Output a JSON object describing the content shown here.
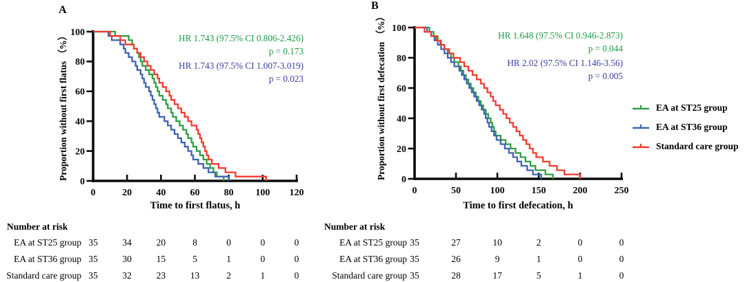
{
  "figure": {
    "background": "#ffffff",
    "colors": {
      "green_curve": "#2f9e44",
      "blue_curve": "#3e63b3",
      "red_curve": "#f23b2e",
      "green_text": "#1e9a47",
      "blue_text": "#3b3fa0",
      "axis": "#0a0a0a"
    }
  },
  "legend": {
    "items": [
      {
        "label": "EA at ST25 group",
        "color": "#2f9e44"
      },
      {
        "label": "EA at ST36 group",
        "color": "#3e63b3"
      },
      {
        "label": "Standard care  group",
        "color": "#f23b2e"
      }
    ]
  },
  "chart_data": [
    {
      "type": "line",
      "subtype": "kaplan-meier-step",
      "title": "A",
      "xlabel": "Time to first flatus, h",
      "ylabel": "Proportion without first flatus （%）",
      "xlim": [
        0,
        120
      ],
      "ylim": [
        0,
        100
      ],
      "x_ticks": [
        0,
        20,
        40,
        60,
        80,
        100,
        120
      ],
      "y_ticks": [
        0,
        20,
        40,
        60,
        80,
        100
      ],
      "grid": false,
      "annotations": {
        "green_hr": "HR 1.743 (97.5% CI 0.806-2.426)",
        "green_p": "p = 0.173",
        "blue_hr": "HR 1.743 (97.5% CI 1.007-3.019)",
        "blue_p": "p = 0.023"
      },
      "series": [
        {
          "name": "EA at ST25 group",
          "color": "#2f9e44",
          "steps": [
            [
              13,
              97.1
            ],
            [
              21,
              94.3
            ],
            [
              23,
              91.4
            ],
            [
              24,
              88.6
            ],
            [
              26,
              85.7
            ],
            [
              27,
              82.9
            ],
            [
              28,
              80
            ],
            [
              29,
              77.1
            ],
            [
              31,
              74.3
            ],
            [
              33,
              71.4
            ],
            [
              35,
              68.6
            ],
            [
              36,
              65.7
            ],
            [
              37,
              62.9
            ],
            [
              38,
              60
            ],
            [
              39,
              57.1
            ],
            [
              41,
              54.3
            ],
            [
              43,
              51.4
            ],
            [
              44,
              48.6
            ],
            [
              46,
              45.7
            ],
            [
              47,
              42.9
            ],
            [
              49,
              40
            ],
            [
              51,
              37.1
            ],
            [
              53,
              34.3
            ],
            [
              55,
              31.4
            ],
            [
              56,
              28.6
            ],
            [
              58,
              25.7
            ],
            [
              59,
              22.9
            ],
            [
              61,
              20
            ],
            [
              63,
              17.1
            ],
            [
              65,
              14.3
            ],
            [
              67,
              11.4
            ],
            [
              69,
              8.6
            ],
            [
              71,
              5.7
            ],
            [
              73,
              2.9
            ],
            [
              77,
              0
            ]
          ]
        },
        {
          "name": "EA at ST36 group",
          "color": "#3e63b3",
          "steps": [
            [
              9,
              97.1
            ],
            [
              11,
              94.3
            ],
            [
              16,
              91.4
            ],
            [
              18,
              88.6
            ],
            [
              19,
              85.7
            ],
            [
              21,
              82.9
            ],
            [
              23,
              80
            ],
            [
              25,
              77.1
            ],
            [
              26,
              74.3
            ],
            [
              28,
              71.4
            ],
            [
              29,
              68.6
            ],
            [
              30,
              65.7
            ],
            [
              31,
              62.9
            ],
            [
              33,
              60
            ],
            [
              34,
              57.1
            ],
            [
              35,
              54.3
            ],
            [
              36,
              51.4
            ],
            [
              37,
              48.6
            ],
            [
              38,
              45.7
            ],
            [
              39,
              42.9
            ],
            [
              42,
              40
            ],
            [
              44,
              37.1
            ],
            [
              46,
              34.3
            ],
            [
              48,
              31.4
            ],
            [
              50,
              28.6
            ],
            [
              52,
              25.7
            ],
            [
              54,
              22.9
            ],
            [
              56,
              20
            ],
            [
              58,
              17.1
            ],
            [
              59,
              14.3
            ],
            [
              62,
              11.4
            ],
            [
              65,
              8.6
            ],
            [
              68,
              5.7
            ],
            [
              72,
              2.9
            ],
            [
              80,
              0
            ]
          ]
        },
        {
          "name": "Standard care group",
          "color": "#f23b2e",
          "steps": [
            [
              10,
              97.1
            ],
            [
              16,
              94.3
            ],
            [
              19,
              91.4
            ],
            [
              24,
              88.6
            ],
            [
              26,
              85.7
            ],
            [
              28,
              82.9
            ],
            [
              30,
              80
            ],
            [
              32,
              77.1
            ],
            [
              34,
              74.3
            ],
            [
              36,
              71.4
            ],
            [
              38,
              68.6
            ],
            [
              39,
              65.7
            ],
            [
              41,
              62.9
            ],
            [
              43,
              60
            ],
            [
              45,
              57.1
            ],
            [
              46,
              54.3
            ],
            [
              48,
              51.4
            ],
            [
              50,
              48.6
            ],
            [
              52,
              45.7
            ],
            [
              54,
              42.9
            ],
            [
              56,
              40
            ],
            [
              58,
              37.1
            ],
            [
              61,
              34.3
            ],
            [
              62,
              31.4
            ],
            [
              63,
              28.6
            ],
            [
              64,
              25.7
            ],
            [
              65,
              22.9
            ],
            [
              66,
              20
            ],
            [
              67,
              17.1
            ],
            [
              68,
              14.3
            ],
            [
              70,
              11.4
            ],
            [
              74,
              8.6
            ],
            [
              78,
              5.7
            ],
            [
              84,
              2.9
            ],
            [
              102,
              0
            ]
          ]
        }
      ],
      "number_at_risk": {
        "title": "Number at risk",
        "times": [
          0,
          20,
          40,
          60,
          80,
          100,
          120
        ],
        "rows": [
          {
            "label": "EA at ST25 group",
            "values": [
              35,
              34,
              20,
              8,
              0,
              0,
              0
            ]
          },
          {
            "label": "EA at ST36 group",
            "values": [
              35,
              30,
              15,
              5,
              1,
              0,
              0
            ]
          },
          {
            "label": "Standard care group",
            "values": [
              35,
              32,
              23,
              13,
              2,
              1,
              0
            ]
          }
        ]
      }
    },
    {
      "type": "line",
      "subtype": "kaplan-meier-step",
      "title": "B",
      "xlabel": "Time to first defecation, h",
      "ylabel": "Proportion without first defecation （%）",
      "xlim": [
        0,
        250
      ],
      "ylim": [
        0,
        100
      ],
      "x_ticks": [
        0,
        50,
        100,
        150,
        200,
        250
      ],
      "y_ticks": [
        0,
        20,
        40,
        60,
        80,
        100
      ],
      "grid": false,
      "annotations": {
        "green_hr": "HR 1.648 (97.5% CI 0.946-2.873)",
        "green_p": "p = 0.044",
        "blue_hr": "HR 2.02 (97.5% CI 1.146-3.56)",
        "blue_p": "p = 0.005"
      },
      "series": [
        {
          "name": "EA at ST25 group",
          "color": "#2f9e44",
          "steps": [
            [
              18,
              97.1
            ],
            [
              23,
              94.3
            ],
            [
              28,
              91.4
            ],
            [
              32,
              88.6
            ],
            [
              36,
              85.7
            ],
            [
              40,
              82.9
            ],
            [
              44,
              80
            ],
            [
              48,
              77.1
            ],
            [
              53,
              74.3
            ],
            [
              56,
              71.4
            ],
            [
              59,
              68.6
            ],
            [
              62,
              65.7
            ],
            [
              65,
              62.9
            ],
            [
              68,
              60
            ],
            [
              71,
              57.1
            ],
            [
              74,
              54.3
            ],
            [
              77,
              51.4
            ],
            [
              80,
              48.6
            ],
            [
              83,
              45.7
            ],
            [
              86,
              42.9
            ],
            [
              89,
              40
            ],
            [
              92,
              37.1
            ],
            [
              94,
              34.3
            ],
            [
              96,
              31.4
            ],
            [
              98,
              28.6
            ],
            [
              104,
              25.7
            ],
            [
              110,
              22.9
            ],
            [
              116,
              20
            ],
            [
              122,
              17.1
            ],
            [
              128,
              14.3
            ],
            [
              134,
              11.4
            ],
            [
              140,
              8.6
            ],
            [
              146,
              5.7
            ],
            [
              158,
              2.9
            ],
            [
              167,
              0
            ]
          ]
        },
        {
          "name": "EA at ST36 group",
          "color": "#3e63b3",
          "steps": [
            [
              15,
              97.1
            ],
            [
              20,
              94.3
            ],
            [
              24,
              91.4
            ],
            [
              28,
              88.6
            ],
            [
              32,
              85.7
            ],
            [
              36,
              82.9
            ],
            [
              40,
              80
            ],
            [
              44,
              77.1
            ],
            [
              48,
              74.3
            ],
            [
              54,
              71.4
            ],
            [
              57,
              68.6
            ],
            [
              60,
              65.7
            ],
            [
              63,
              62.9
            ],
            [
              66,
              60
            ],
            [
              69,
              57.1
            ],
            [
              72,
              54.3
            ],
            [
              75,
              51.4
            ],
            [
              78,
              48.6
            ],
            [
              81,
              45.7
            ],
            [
              84,
              42.9
            ],
            [
              86,
              40
            ],
            [
              88,
              37.1
            ],
            [
              90,
              34.3
            ],
            [
              93,
              31.4
            ],
            [
              96,
              28.6
            ],
            [
              99,
              25.7
            ],
            [
              104,
              22.9
            ],
            [
              109,
              20
            ],
            [
              114,
              17.1
            ],
            [
              119,
              14.3
            ],
            [
              124,
              11.4
            ],
            [
              129,
              8.6
            ],
            [
              136,
              5.7
            ],
            [
              143,
              2.9
            ],
            [
              153,
              0
            ]
          ]
        },
        {
          "name": "Standard care group",
          "color": "#f23b2e",
          "steps": [
            [
              12,
              97.1
            ],
            [
              20,
              94.3
            ],
            [
              26,
              91.4
            ],
            [
              31,
              88.6
            ],
            [
              36,
              85.7
            ],
            [
              42,
              82.9
            ],
            [
              47,
              80
            ],
            [
              55,
              77.1
            ],
            [
              60,
              74.3
            ],
            [
              65,
              71.4
            ],
            [
              70,
              68.6
            ],
            [
              75,
              65.7
            ],
            [
              80,
              62.9
            ],
            [
              84,
              60
            ],
            [
              88,
              57.1
            ],
            [
              92,
              54.3
            ],
            [
              95,
              51.4
            ],
            [
              98,
              48.6
            ],
            [
              103,
              45.7
            ],
            [
              107,
              42.9
            ],
            [
              111,
              40
            ],
            [
              115,
              37.1
            ],
            [
              119,
              34.3
            ],
            [
              123,
              31.4
            ],
            [
              127,
              28.6
            ],
            [
              131,
              25.7
            ],
            [
              135,
              22.9
            ],
            [
              139,
              20
            ],
            [
              143,
              17.1
            ],
            [
              147,
              14.3
            ],
            [
              155,
              11.4
            ],
            [
              163,
              8.6
            ],
            [
              172,
              5.7
            ],
            [
              181,
              2.9
            ],
            [
              200,
              0
            ]
          ]
        }
      ],
      "number_at_risk": {
        "title": "Number at risk",
        "times": [
          0,
          50,
          100,
          150,
          200,
          250
        ],
        "rows": [
          {
            "label": "EA at ST25 group",
            "values": [
              35,
              27,
              10,
              2,
              0,
              0
            ]
          },
          {
            "label": "EA at ST36 group",
            "values": [
              35,
              26,
              9,
              1,
              0,
              0
            ]
          },
          {
            "label": "Standard care group",
            "values": [
              35,
              28,
              17,
              5,
              1,
              0
            ]
          }
        ]
      }
    }
  ]
}
